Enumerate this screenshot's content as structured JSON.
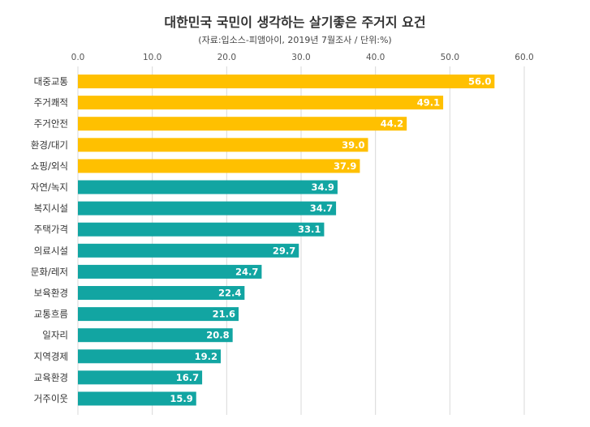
{
  "chart_data": {
    "type": "bar",
    "orientation": "horizontal",
    "title": "대한민국 국민이 생각하는 살기좋은 주거지 요건",
    "subtitle": "(자료:입소스-피앰아이, 2019년 7월조사 / 단위:%)",
    "xlim": [
      0,
      60
    ],
    "ticks": [
      "0.0",
      "10.0",
      "20.0",
      "30.0",
      "40.0",
      "50.0",
      "60.0"
    ],
    "axis_position": "top",
    "grid": true,
    "highlight_count": 5,
    "colors": {
      "highlight": "#FFC000",
      "normal": "#12A5A2",
      "grid": "#D9D9D9",
      "label": "#ffffff"
    },
    "categories": [
      "대중교통",
      "주거쾌적",
      "주거안전",
      "환경/대기",
      "쇼핑/외식",
      "자연/녹지",
      "복지시설",
      "주택가격",
      "의료시설",
      "문화/레저",
      "보육환경",
      "교통흐름",
      "일자리",
      "지역경제",
      "교육환경",
      "거주이웃"
    ],
    "values": [
      56.0,
      49.1,
      44.2,
      39.0,
      37.9,
      34.9,
      34.7,
      33.1,
      29.7,
      24.7,
      22.4,
      21.6,
      20.8,
      19.2,
      16.7,
      15.9
    ],
    "value_labels": [
      "56.0",
      "49.1",
      "44.2",
      "39.0",
      "37.9",
      "34.9",
      "34.7",
      "33.1",
      "29.7",
      "24.7",
      "22.4",
      "21.6",
      "20.8",
      "19.2",
      "16.7",
      "15.9"
    ]
  }
}
